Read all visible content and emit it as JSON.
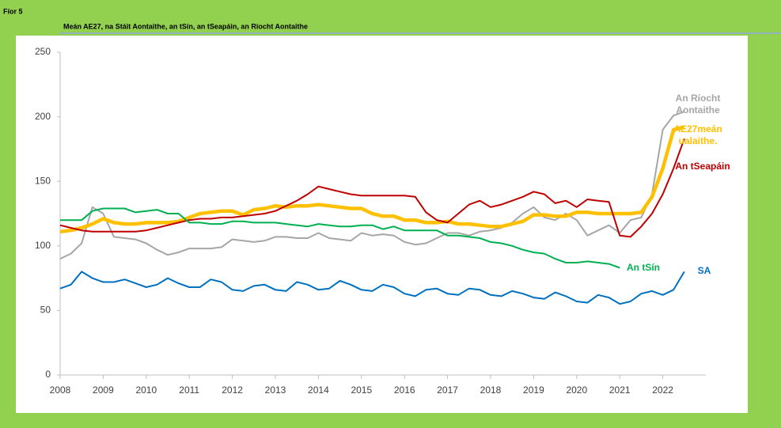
{
  "figure_label": "Fíor 5",
  "chart_data": {
    "type": "line",
    "subtitle": "Meán AE27, na Stáit Aontaithe, an tSín, an tSeapáin, an Ríocht Aontaithe",
    "x": [
      2008,
      2008.25,
      2008.5,
      2008.75,
      2009,
      2009.25,
      2009.5,
      2009.75,
      2010,
      2010.25,
      2010.5,
      2010.75,
      2011,
      2011.25,
      2011.5,
      2011.75,
      2012,
      2012.25,
      2012.5,
      2012.75,
      2013,
      2013.25,
      2013.5,
      2013.75,
      2014,
      2014.25,
      2014.5,
      2014.75,
      2015,
      2015.25,
      2015.5,
      2015.75,
      2016,
      2016.25,
      2016.5,
      2016.75,
      2017,
      2017.25,
      2017.5,
      2017.75,
      2018,
      2018.25,
      2018.5,
      2018.75,
      2019,
      2019.25,
      2019.5,
      2019.75,
      2020,
      2020.25,
      2020.5,
      2020.75,
      2021,
      2021.25,
      2021.5,
      2021.75,
      2022,
      2022.25,
      2022.5
    ],
    "xlim": [
      2008,
      2023
    ],
    "xticks": [
      2008,
      2009,
      2010,
      2011,
      2012,
      2013,
      2014,
      2015,
      2016,
      2017,
      2018,
      2019,
      2020,
      2021,
      2022
    ],
    "ylim": [
      0,
      250
    ],
    "yticks": [
      0,
      50,
      100,
      150,
      200,
      250
    ],
    "grid": false,
    "series": [
      {
        "name": "An Ríocht Aontaithe",
        "color": "#a6a6a6",
        "values": [
          90,
          94,
          102,
          130,
          125,
          107,
          106,
          105,
          102,
          97,
          93,
          95,
          98,
          98,
          98,
          99,
          105,
          104,
          103,
          104,
          107,
          107,
          106,
          106,
          110,
          106,
          105,
          104,
          110,
          108,
          109,
          108,
          103,
          101,
          102,
          106,
          110,
          110,
          108,
          111,
          112,
          114,
          118,
          125,
          130,
          122,
          120,
          125,
          120,
          108,
          112,
          116,
          110,
          120,
          122,
          140,
          190,
          201,
          204
        ]
      },
      {
        "name": "AE27meán ualaithe.",
        "color": "#ffc000",
        "values": [
          111,
          112,
          114,
          117,
          121,
          118,
          117,
          117,
          118,
          118,
          118,
          119,
          122,
          125,
          126,
          127,
          127,
          124,
          128,
          129,
          131,
          130,
          131,
          131,
          132,
          131,
          130,
          129,
          129,
          125,
          123,
          123,
          120,
          120,
          118,
          118,
          119,
          117,
          117,
          116,
          115,
          115,
          117,
          119,
          124,
          124,
          123,
          123,
          126,
          126,
          125,
          125,
          125,
          125,
          126,
          138,
          160,
          190,
          192
        ]
      },
      {
        "name": "An tSeapáin",
        "color": "#c00000",
        "values": [
          116,
          114,
          112,
          111,
          111,
          111,
          111,
          111,
          112,
          114,
          116,
          118,
          120,
          121,
          121,
          122,
          122,
          123,
          124,
          125,
          127,
          131,
          135,
          140,
          146,
          144,
          142,
          140,
          139,
          139,
          139,
          139,
          139,
          138,
          126,
          120,
          118,
          125,
          132,
          135,
          130,
          132,
          135,
          138,
          142,
          140,
          133,
          135,
          130,
          136,
          135,
          134,
          108,
          107,
          115,
          125,
          140,
          160,
          183
        ]
      },
      {
        "name": "An tSín",
        "color": "#00b050",
        "values": [
          120,
          120,
          120,
          127,
          129,
          129,
          129,
          126,
          127,
          128,
          125,
          125,
          118,
          118,
          117,
          117,
          119,
          119,
          118,
          118,
          118,
          117,
          116,
          115,
          117,
          116,
          115,
          115,
          116,
          116,
          113,
          115,
          112,
          112,
          112,
          112,
          108,
          108,
          107,
          106,
          103,
          102,
          100,
          97,
          95,
          94,
          90,
          87,
          87,
          88,
          87,
          86,
          83,
          null,
          null,
          null,
          null,
          null,
          null
        ]
      },
      {
        "name": "SA",
        "color": "#0070c0",
        "values": [
          67,
          70,
          80,
          75,
          72,
          72,
          74,
          71,
          68,
          70,
          75,
          71,
          68,
          68,
          74,
          72,
          66,
          65,
          69,
          70,
          66,
          65,
          72,
          70,
          66,
          67,
          73,
          70,
          66,
          65,
          70,
          68,
          63,
          61,
          66,
          67,
          63,
          62,
          67,
          66,
          62,
          61,
          65,
          63,
          60,
          59,
          64,
          61,
          57,
          56,
          62,
          60,
          55,
          57,
          63,
          65,
          62,
          66,
          80
        ]
      }
    ]
  }
}
